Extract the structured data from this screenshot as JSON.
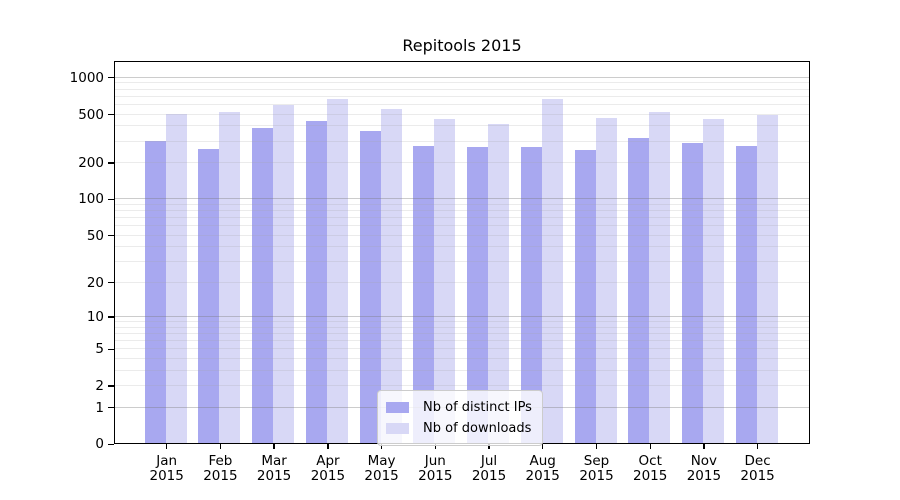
{
  "title": "Repitools 2015",
  "chart_data": {
    "type": "bar",
    "title": "Repitools 2015",
    "categories": [
      "Jan 2015",
      "Feb 2015",
      "Mar 2015",
      "Apr 2015",
      "May 2015",
      "Jun 2015",
      "Jul 2015",
      "Aug 2015",
      "Sep 2015",
      "Oct 2015",
      "Nov 2015",
      "Dec 2015"
    ],
    "series": [
      {
        "name": "Nb of distinct IPs",
        "color": "#a8a8f0",
        "values": [
          297,
          256,
          380,
          432,
          355,
          269,
          262,
          262,
          248,
          313,
          285,
          267
        ]
      },
      {
        "name": "Nb of downloads",
        "color": "#d8d8f6",
        "values": [
          497,
          512,
          588,
          653,
          538,
          452,
          408,
          653,
          453,
          507,
          452,
          483
        ]
      }
    ],
    "xlabel": "",
    "ylabel": "",
    "ylim": [
      0,
      1000
    ],
    "yscale": "log10(value+1)",
    "yticks": [
      0,
      1,
      2,
      5,
      10,
      20,
      50,
      100,
      200,
      500,
      1000
    ],
    "minor_gridlines": [
      2,
      3,
      4,
      5,
      6,
      7,
      8,
      9,
      20,
      30,
      40,
      50,
      60,
      70,
      80,
      90,
      200,
      300,
      400,
      500,
      600,
      700,
      800,
      900
    ],
    "major_gridlines": [
      1,
      10,
      100,
      1000
    ],
    "grid": "horizontal",
    "legend_position": "inside lower center",
    "background": "#ffffff"
  }
}
